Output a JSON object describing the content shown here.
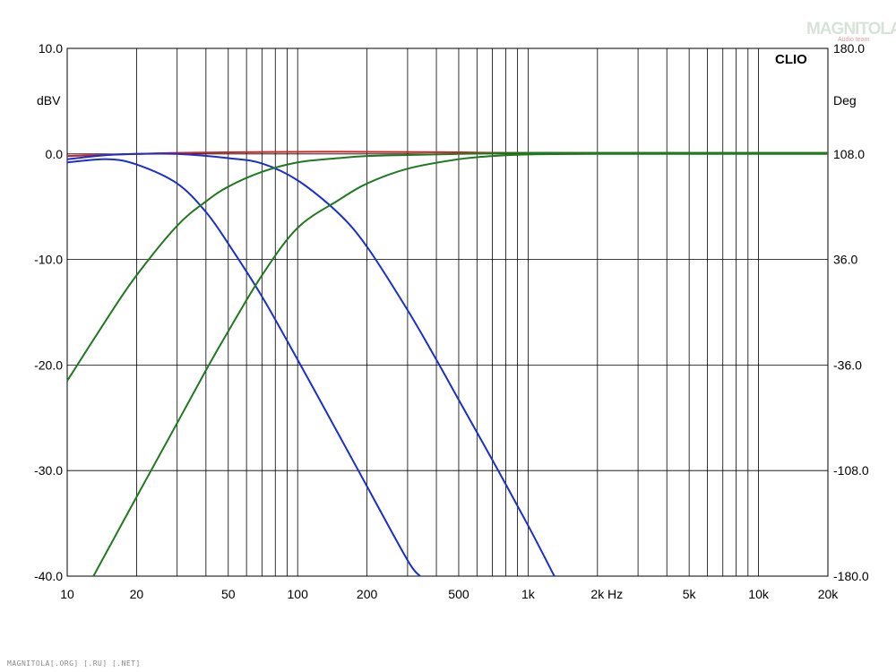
{
  "watermark": {
    "logo": "MAGNITOLA",
    "sub": "Audio team"
  },
  "footer_text": "MAGNITOLA[.ORG] [.RU] [.NET]",
  "chart_data": {
    "type": "line",
    "brand": "CLIO",
    "x_scale": "log",
    "xlim": [
      10,
      20000
    ],
    "ylim": [
      -40,
      10
    ],
    "y2lim": [
      -180,
      180
    ],
    "grid": true,
    "ylabel": "dBV",
    "y2label": "Deg",
    "xunit": "Hz",
    "x_tick_labels": [
      {
        "value": 10,
        "label": "10"
      },
      {
        "value": 20,
        "label": "20"
      },
      {
        "value": 50,
        "label": "50"
      },
      {
        "value": 100,
        "label": "100"
      },
      {
        "value": 200,
        "label": "200"
      },
      {
        "value": 500,
        "label": "500"
      },
      {
        "value": 1000,
        "label": "1k"
      },
      {
        "value": 2000,
        "label": "2k"
      },
      {
        "value": 5000,
        "label": "5k"
      },
      {
        "value": 10000,
        "label": "10k"
      },
      {
        "value": 20000,
        "label": "20k"
      }
    ],
    "y_tick_labels": [
      {
        "value": 10,
        "label": "10.0"
      },
      {
        "value": 0,
        "label": "0.0"
      },
      {
        "value": -10,
        "label": "-10.0"
      },
      {
        "value": -20,
        "label": "-20.0"
      },
      {
        "value": -30,
        "label": "-30.0"
      },
      {
        "value": -40,
        "label": "-40.0"
      }
    ],
    "y2_tick_labels": [
      {
        "value": 180,
        "label": "180.0"
      },
      {
        "value": 108,
        "label": "108.0"
      },
      {
        "value": 36,
        "label": "36.0"
      },
      {
        "value": -36,
        "label": "-36.0"
      },
      {
        "value": -108,
        "label": "-108.0"
      },
      {
        "value": -180,
        "label": "-180.0"
      }
    ],
    "series": [
      {
        "color": "#d42020",
        "x": [
          10,
          20,
          30,
          50,
          100,
          200,
          500,
          1000,
          20000
        ],
        "y": [
          -0.2,
          0.0,
          0.1,
          0.15,
          0.2,
          0.2,
          0.15,
          0.1,
          0.1
        ]
      },
      {
        "color": "#1a2fd0",
        "x": [
          10,
          15,
          20,
          30,
          40,
          50,
          70,
          100,
          150,
          200,
          300,
          340
        ],
        "y": [
          -0.8,
          -0.5,
          -1.0,
          -2.8,
          -5.5,
          -8.5,
          -13.5,
          -19.5,
          -26.5,
          -31.5,
          -38.5,
          -40
        ]
      },
      {
        "color": "#1a2fd0",
        "x": [
          10,
          15,
          20,
          30,
          50,
          70,
          100,
          150,
          200,
          300,
          400,
          500,
          700,
          1000,
          1300
        ],
        "y": [
          -0.5,
          -0.1,
          0.0,
          0.0,
          -0.4,
          -0.9,
          -2.5,
          -5.6,
          -8.8,
          -14.8,
          -19.5,
          -23.3,
          -29,
          -35.2,
          -40
        ]
      },
      {
        "color": "#1f7a1f",
        "x": [
          10,
          15,
          20,
          30,
          40,
          50,
          70,
          100,
          150,
          200,
          300,
          500,
          1000,
          2000,
          20000
        ],
        "y": [
          -21.5,
          -15.5,
          -11.5,
          -6.8,
          -4.5,
          -3.1,
          -1.7,
          -0.8,
          -0.4,
          -0.2,
          -0.1,
          0.0,
          0.1,
          0.1,
          0.1
        ]
      },
      {
        "color": "#1f7a1f",
        "x": [
          13,
          20,
          30,
          40,
          50,
          70,
          100,
          150,
          200,
          300,
          500,
          700,
          1000,
          2000,
          20000
        ],
        "y": [
          -40,
          -32.5,
          -25.5,
          -20.5,
          -16.8,
          -11.5,
          -7.0,
          -4.4,
          -2.8,
          -1.4,
          -0.5,
          -0.2,
          -0.05,
          0.0,
          0.0
        ]
      }
    ]
  }
}
